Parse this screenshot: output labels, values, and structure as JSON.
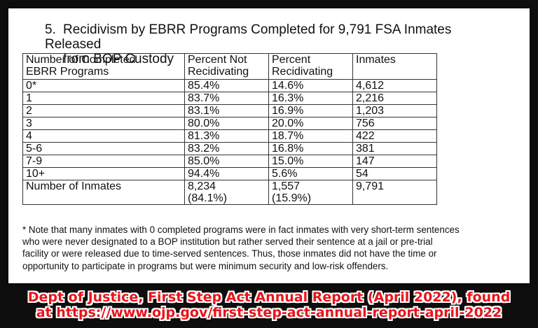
{
  "heading": {
    "number": "5.",
    "line1": "Recidivism by EBRR Programs Completed for 9,791 FSA Inmates Released",
    "line2": "from BOP Custody"
  },
  "table": {
    "headers": [
      [
        "Number of Completed",
        "EBRR Programs"
      ],
      [
        "Percent Not",
        "Recidivating"
      ],
      [
        "Percent",
        "Recidivating"
      ],
      [
        "Inmates",
        ""
      ]
    ],
    "rows": [
      [
        "0*",
        "85.4%",
        "14.6%",
        "4,612"
      ],
      [
        "1",
        "83.7%",
        "16.3%",
        "2,216"
      ],
      [
        "2",
        "83.1%",
        "16.9%",
        "1,203"
      ],
      [
        "3",
        "80.0%",
        "20.0%",
        "756"
      ],
      [
        "4",
        "81.3%",
        "18.7%",
        "422"
      ],
      [
        "5-6",
        "83.2%",
        "16.8%",
        "381"
      ],
      [
        "7-9",
        "85.0%",
        "15.0%",
        "147"
      ],
      [
        "10+",
        "94.4%",
        "5.6%",
        "54"
      ]
    ],
    "total_row": {
      "label": "Number of Inmates",
      "not_recid": [
        "8,234",
        "(84.1%)"
      ],
      "recid": [
        "1,557",
        "(15.9%)"
      ],
      "inmates": "9,791"
    }
  },
  "note": {
    "lines": [
      "* Note that many inmates with 0 completed programs were in fact inmates with very short-term sentences",
      "who were never designated to a BOP institution but rather served their sentence at a jail or pre-trial",
      "facility or were released due to time-served sentences. Thus, those inmates did not have the time or",
      "opportunity to participate in programs but were minimum security and low-risk offenders."
    ]
  },
  "source": {
    "line1": "Dept of Justice, First Step Act Annual Report (April 2022), found",
    "line2": "at https://www.ojp.gov/first-step-act-annual-report-april-2022"
  },
  "colors": {
    "background": "#0e0e0e",
    "card": "#ffffff",
    "source_text": "#e8141b",
    "text": "#111111"
  }
}
